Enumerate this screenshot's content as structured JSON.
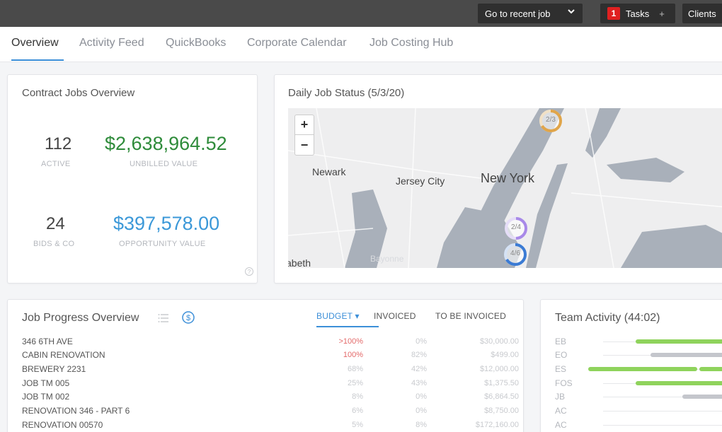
{
  "topbar": {
    "recent_job_label": "Go to recent job",
    "chevron_icon": "chevron-down-icon",
    "tasks_count": "1",
    "tasks_label": "Tasks",
    "tasks_plus": "+",
    "clients_label": "Clients"
  },
  "tabs": [
    {
      "label": "Overview",
      "active": true
    },
    {
      "label": "Activity Feed"
    },
    {
      "label": "QuickBooks"
    },
    {
      "label": "Corporate Calendar"
    },
    {
      "label": "Job Costing Hub"
    }
  ],
  "contract": {
    "title": "Contract Jobs Overview",
    "active_count": "112",
    "active_label": "ACTIVE",
    "unbilled_value": "$2,638,964.52",
    "unbilled_label": "UNBILLED VALUE",
    "bids_count": "24",
    "bids_label": "BIDS & CO",
    "opportunity_value": "$397,578.00",
    "opportunity_label": "OPPORTUNITY VALUE",
    "help_icon": "question-icon"
  },
  "daily": {
    "title": "Daily Job Status (5/3/20)",
    "zoom_in": "+",
    "zoom_out": "−",
    "labels": {
      "newark": "Newark",
      "jersey_city": "Jersey City",
      "new_york": "New York",
      "bayonne": "Bayonne",
      "elizabeth": "abeth"
    },
    "markers": [
      {
        "label": "2/3",
        "fraction": 0.667,
        "color": "#e0a54a"
      },
      {
        "label": "2/4",
        "fraction": 0.5,
        "color": "#a889e8"
      },
      {
        "label": "4/6",
        "fraction": 0.667,
        "color": "#3b7bd4"
      }
    ]
  },
  "jobs": {
    "title": "Job Progress Overview",
    "list_icon": "list-icon",
    "dollar_icon": "dollar-circle-icon",
    "col_budget": "BUDGET",
    "col_budget_caret": "▾",
    "col_invoiced": "INVOICED",
    "col_tbi": "TO BE INVOICED",
    "rows": [
      {
        "name": "346 6TH AVE",
        "budget": ">100%",
        "invoiced": "0%",
        "tbi": "$30,000.00"
      },
      {
        "name": "CABIN RENOVATION",
        "budget": "100%",
        "invoiced": "82%",
        "tbi": "$499.00"
      },
      {
        "name": "BREWERY 2231",
        "budget": "68%",
        "invoiced": "42%",
        "tbi": "$12,000.00"
      },
      {
        "name": "JOB TM 005",
        "budget": "25%",
        "invoiced": "43%",
        "tbi": "$1,375.50"
      },
      {
        "name": "JOB TM 002",
        "budget": "8%",
        "invoiced": "0%",
        "tbi": "$6,864.50"
      },
      {
        "name": "RENOVATION 346 - PART 6",
        "budget": "6%",
        "invoiced": "0%",
        "tbi": "$8,750.00"
      },
      {
        "name": "RENOVATION 00570",
        "budget": "5%",
        "invoiced": "8%",
        "tbi": "$172,160.00"
      }
    ]
  },
  "team": {
    "title": "Team Activity (44:02)",
    "colors": {
      "green": "#8fd35c",
      "gray": "#c4c6cc"
    },
    "members": [
      {
        "initials": "EB"
      },
      {
        "initials": "EO"
      },
      {
        "initials": "ES"
      },
      {
        "initials": "FOS"
      },
      {
        "initials": "JB"
      },
      {
        "initials": "AC"
      },
      {
        "initials": "AC"
      }
    ]
  }
}
